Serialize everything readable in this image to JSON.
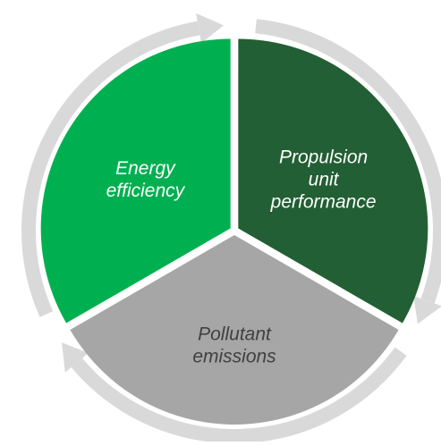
{
  "segments": [
    {
      "lines": [
        "Propulsion",
        "unit",
        "performance"
      ],
      "color": "#235f34",
      "text_color": "#ffffff"
    },
    {
      "lines": [
        "Pollutant",
        "emissions"
      ],
      "color": "#a6a6a6",
      "text_color": "#404040"
    },
    {
      "lines": [
        "Energy",
        "efficiency"
      ],
      "color": "#00b050",
      "text_color": "#ffffff"
    }
  ]
}
